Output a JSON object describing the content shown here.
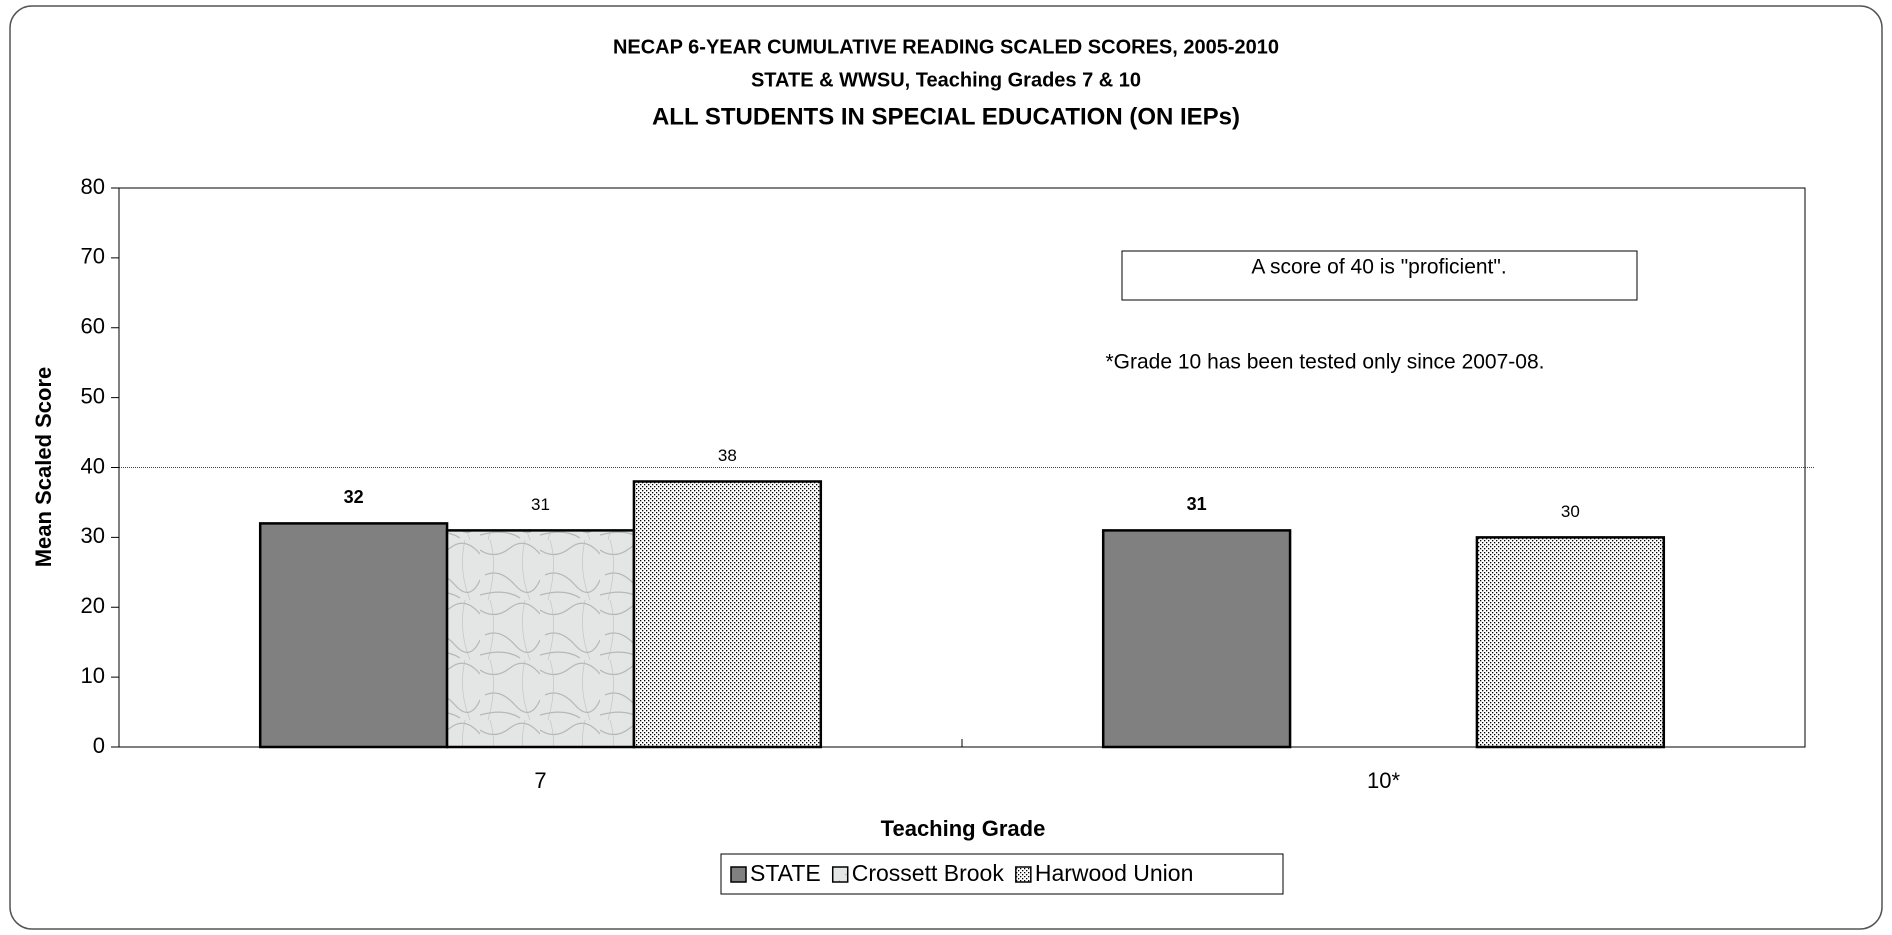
{
  "chart_data": {
    "type": "bar",
    "title": "NECAP 6-YEAR CUMULATIVE READING SCALED SCORES, 2005-2010",
    "subtitle": "STATE & WWSU, Teaching Grades 7 & 10",
    "subtitle2": "ALL STUDENTS IN SPECIAL EDUCATION (ON IEPs)",
    "x_label": "Teaching Grade",
    "y_label": "Mean Scaled Score",
    "categories": [
      "7",
      "10*"
    ],
    "series": [
      {
        "name": "STATE",
        "color": "#808080",
        "pattern": "solid",
        "values": [
          32,
          31
        ]
      },
      {
        "name": "Crossett Brook",
        "color": "#e4e6e6",
        "pattern": "marble",
        "values": [
          31,
          null
        ]
      },
      {
        "name": "Harwood Union",
        "color": "#ffffff",
        "pattern": "dots",
        "values": [
          38,
          30
        ]
      }
    ],
    "ylim": [
      0,
      80
    ],
    "yticks": [
      0,
      10,
      20,
      30,
      40,
      50,
      60,
      70,
      80
    ],
    "reference_line": 40,
    "annotations": [
      "A score of 40 is \"proficient\".",
      "*Grade 10 has been tested only since 2007-08."
    ],
    "legend": "bottom"
  }
}
